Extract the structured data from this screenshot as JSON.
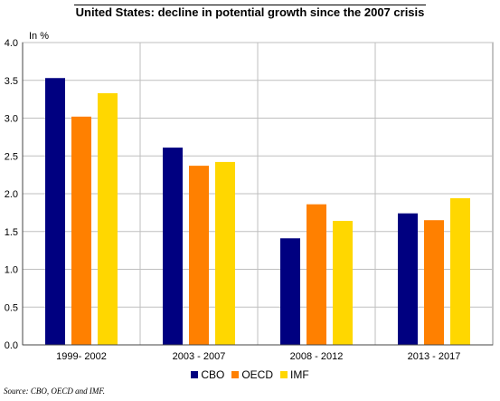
{
  "chart_data": {
    "type": "bar",
    "title": "United States: decline in potential growth since the 2007 crisis",
    "ylabel": "In %",
    "xlabel": "",
    "ylim": [
      0,
      4.0
    ],
    "yticks": [
      "0.0",
      "0.5",
      "1.0",
      "1.5",
      "2.0",
      "2.5",
      "3.0",
      "3.5",
      "4.0"
    ],
    "categories": [
      "1999- 2002",
      "2003 - 2007",
      "2008 - 2012",
      "2013 - 2017"
    ],
    "series": [
      {
        "name": "CBO",
        "color": "#000080",
        "values": [
          3.53,
          2.61,
          1.41,
          1.74
        ]
      },
      {
        "name": "OECD",
        "color": "#FF8000",
        "values": [
          3.02,
          2.37,
          1.86,
          1.65
        ]
      },
      {
        "name": "IMF",
        "color": "#FFD700",
        "values": [
          3.33,
          2.42,
          1.64,
          1.94
        ]
      }
    ],
    "grid": true,
    "legend_position": "bottom",
    "source": "Source: CBO, OECD and IMF."
  }
}
